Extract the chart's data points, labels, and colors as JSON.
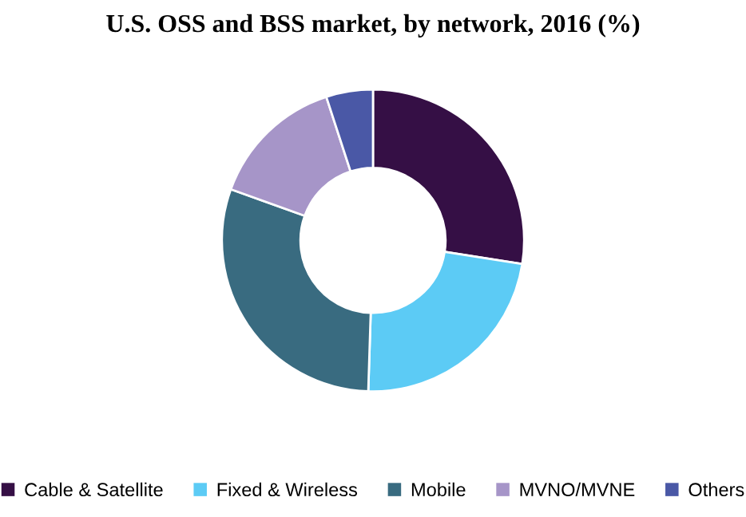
{
  "chart_data": {
    "type": "donut",
    "title": "U.S. OSS and BSS market, by network, 2016 (%)",
    "categories": [
      "Cable & Satellite",
      "Fixed & Wireless",
      "Mobile",
      "MVNO/MVNE",
      "Others"
    ],
    "values": [
      27.5,
      23,
      30,
      14.5,
      5
    ],
    "colors": [
      "#350f45",
      "#5ccbf5",
      "#396b80",
      "#a695c8",
      "#4a58a6"
    ],
    "legend": "bottom"
  }
}
